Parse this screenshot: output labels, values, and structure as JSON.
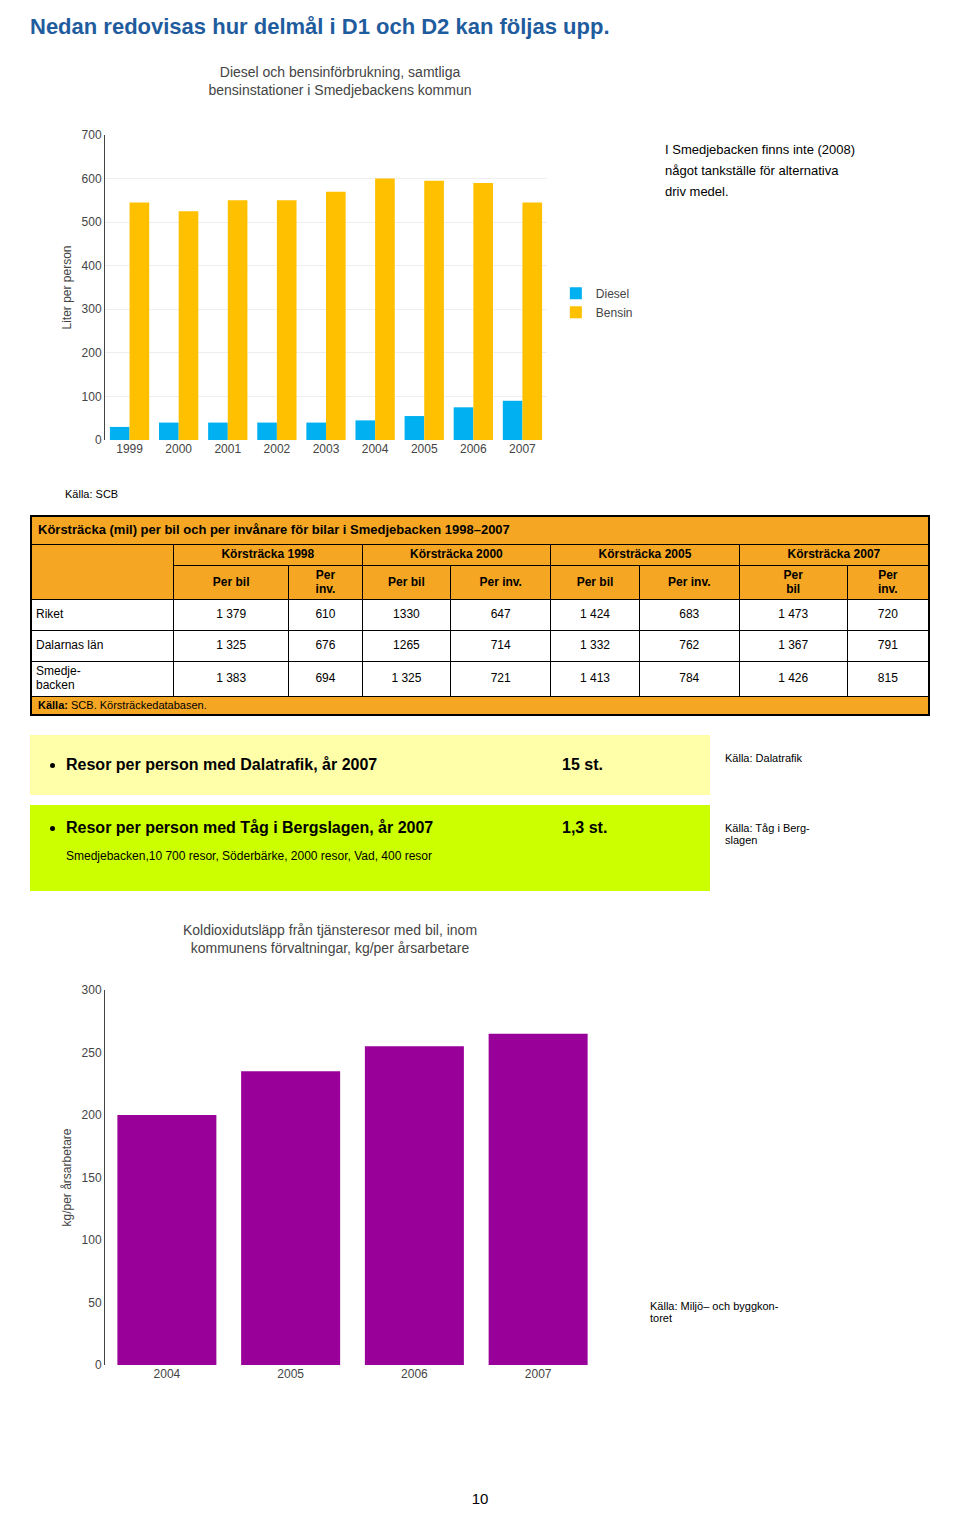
{
  "page_title": {
    "text": "Nedan redovisas hur delmål i D1 och D2 kan följas upp.",
    "color": "#1F5C9E"
  },
  "chart_data": [
    {
      "type": "bar",
      "title": "Diesel och bensinförbrukning, samtliga\nbensinstationer i Smedjebackens kommun",
      "ylabel": "Liter per person",
      "categories": [
        "1999",
        "2000",
        "2001",
        "2002",
        "2003",
        "2004",
        "2005",
        "2006",
        "2007"
      ],
      "series": [
        {
          "name": "Diesel",
          "color": "#00B0F0",
          "values": [
            30,
            40,
            40,
            40,
            40,
            45,
            55,
            75,
            90
          ]
        },
        {
          "name": "Bensin",
          "color": "#FFC000",
          "values": [
            545,
            525,
            550,
            550,
            570,
            600,
            595,
            590,
            545
          ]
        }
      ],
      "ylim": [
        0,
        700
      ],
      "yticks": [
        0,
        100,
        200,
        300,
        400,
        500,
        600,
        700
      ],
      "grid": true,
      "legend": "right",
      "source": "Källa: SCB",
      "note": "I Smedjebacken finns inte (2008)\nnågot tankställe för alternativa\ndriv medel."
    },
    {
      "type": "bar",
      "title": "Koldioxidutsläpp från tjänsteresor med bil, inom\nkommunens förvaltningar, kg/per årsarbetare",
      "ylabel": "kg/per årsarbetare",
      "categories": [
        "2004",
        "2005",
        "2006",
        "2007"
      ],
      "values": [
        200,
        235,
        255,
        265
      ],
      "color": "#990099",
      "ylim": [
        0,
        300
      ],
      "yticks": [
        0,
        50,
        100,
        150,
        200,
        250,
        300
      ],
      "grid": false,
      "source": "Källa: Miljö– och byggkon-\ntoret"
    }
  ],
  "table": {
    "title": "Körsträcka (mil) per bil och per invånare för bilar i Smedjebacken 1998–2007",
    "color": "#F5A623",
    "col_headers": [
      "Körsträcka 1998",
      "Körsträcka 2000",
      "Körsträcka 2005",
      "Körsträcka 2007"
    ],
    "sub_headers": [
      "Per bil",
      "Per\ninv.",
      "Per bil",
      "Per inv.",
      "Per bil",
      "Per inv.",
      "Per\nbil",
      "Per\ninv."
    ],
    "rows": [
      [
        "Riket",
        "1 379",
        "610",
        "1330",
        "647",
        "1 424",
        "683",
        "1 473",
        "720"
      ],
      [
        "Dalarnas län",
        "1 325",
        "676",
        "1265",
        "714",
        "1 332",
        "762",
        "1 367",
        "791"
      ],
      [
        "Smedje-\nbacken",
        "1 383",
        "694",
        "1 325",
        "721",
        "1 413",
        "784",
        "1 426",
        "815"
      ]
    ],
    "source_label": "Källa:",
    "source": "SCB. Körsträckedatabasen."
  },
  "boxes": [
    {
      "text": "Resor per person med Dalatrafik, år 2007",
      "value": "15 st.",
      "source": "Källa: Dalatrafik",
      "color": "#FFFFAA"
    },
    {
      "text": "Resor per person med Tåg i Bergslagen, år 2007",
      "value": "1,3 st.",
      "subtext": "Smedjebacken,10 700 resor, Söderbärke, 2000 resor, Vad, 400 resor",
      "source": "Källa: Tåg i Berg-\nslagen",
      "color": "#CCFF00"
    }
  ],
  "page_number": "10"
}
